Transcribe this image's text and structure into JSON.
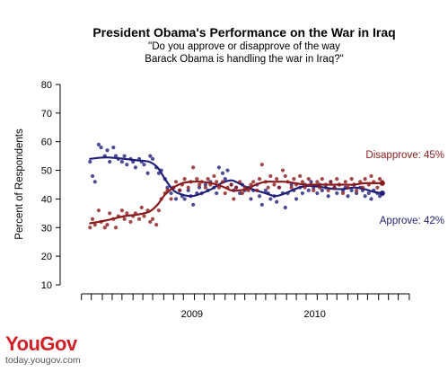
{
  "chart_data": {
    "type": "scatter",
    "title": "President Obama's Performance on the War in Iraq",
    "subtitle_lines": [
      "\"Do you approve or disapprove of the way",
      "Barack Obama is handling the war in Iraq?\""
    ],
    "ylabel": "Percent of Respondents",
    "ylim": [
      10,
      80
    ],
    "yticks": [
      10,
      20,
      30,
      40,
      50,
      60,
      70,
      80
    ],
    "xlim": [
      2008.58,
      2011.3
    ],
    "x_tick_labels": [
      {
        "label": "2009",
        "at": 2009.5
      },
      {
        "label": "2010",
        "at": 2010.5
      }
    ],
    "minor_x_ticks": [
      2008.6,
      2008.68,
      2008.77,
      2008.85,
      2008.93,
      2009.02,
      2009.1,
      2009.18,
      2009.27,
      2009.35,
      2009.43,
      2009.52,
      2009.6,
      2009.68,
      2009.77,
      2009.85,
      2009.93,
      2010.02,
      2010.1,
      2010.18,
      2010.27,
      2010.35,
      2010.43,
      2010.52,
      2010.6,
      2010.68,
      2010.77,
      2010.85,
      2010.93,
      2011.02,
      2011.1,
      2011.18,
      2011.27
    ],
    "series": [
      {
        "name": "Approve",
        "end_label": "Approve: 42%",
        "color": "#1f1f7a",
        "points": [
          [
            2008.67,
            53
          ],
          [
            2008.69,
            48
          ],
          [
            2008.71,
            46
          ],
          [
            2008.74,
            59
          ],
          [
            2008.76,
            58
          ],
          [
            2008.79,
            55
          ],
          [
            2008.81,
            57
          ],
          [
            2008.83,
            53
          ],
          [
            2008.86,
            58
          ],
          [
            2008.88,
            55
          ],
          [
            2008.9,
            54
          ],
          [
            2008.93,
            53
          ],
          [
            2008.95,
            55
          ],
          [
            2008.97,
            52
          ],
          [
            2009.0,
            54
          ],
          [
            2009.02,
            53
          ],
          [
            2009.04,
            51
          ],
          [
            2009.07,
            54
          ],
          [
            2009.09,
            53
          ],
          [
            2009.11,
            52
          ],
          [
            2009.14,
            49
          ],
          [
            2009.16,
            55
          ],
          [
            2009.18,
            54
          ],
          [
            2009.21,
            51
          ],
          [
            2009.23,
            49
          ],
          [
            2009.25,
            50
          ],
          [
            2009.28,
            47
          ],
          [
            2009.3,
            44
          ],
          [
            2009.33,
            42
          ],
          [
            2009.35,
            44
          ],
          [
            2009.37,
            40
          ],
          [
            2009.4,
            43
          ],
          [
            2009.42,
            41
          ],
          [
            2009.44,
            40
          ],
          [
            2009.47,
            43
          ],
          [
            2009.49,
            41
          ],
          [
            2009.51,
            38
          ],
          [
            2009.54,
            42
          ],
          [
            2009.56,
            44
          ],
          [
            2009.58,
            42
          ],
          [
            2009.61,
            45
          ],
          [
            2009.63,
            43
          ],
          [
            2009.65,
            46
          ],
          [
            2009.68,
            44
          ],
          [
            2009.7,
            42
          ],
          [
            2009.72,
            51
          ],
          [
            2009.75,
            49
          ],
          [
            2009.77,
            47
          ],
          [
            2009.79,
            50
          ],
          [
            2009.82,
            45
          ],
          [
            2009.84,
            43
          ],
          [
            2009.86,
            44
          ],
          [
            2009.89,
            42
          ],
          [
            2009.91,
            45
          ],
          [
            2009.93,
            43
          ],
          [
            2009.96,
            44
          ],
          [
            2009.98,
            40
          ],
          [
            2010.0,
            43
          ],
          [
            2010.03,
            45
          ],
          [
            2010.05,
            41
          ],
          [
            2010.07,
            38
          ],
          [
            2010.1,
            43
          ],
          [
            2010.12,
            42
          ],
          [
            2010.14,
            40
          ],
          [
            2010.17,
            41
          ],
          [
            2010.19,
            39
          ],
          [
            2010.21,
            44
          ],
          [
            2010.24,
            42
          ],
          [
            2010.26,
            37
          ],
          [
            2010.28,
            42
          ],
          [
            2010.31,
            45
          ],
          [
            2010.33,
            43
          ],
          [
            2010.35,
            40
          ],
          [
            2010.38,
            44
          ],
          [
            2010.4,
            42
          ],
          [
            2010.42,
            45
          ],
          [
            2010.45,
            43
          ],
          [
            2010.47,
            46
          ],
          [
            2010.49,
            44
          ],
          [
            2010.52,
            42
          ],
          [
            2010.54,
            45
          ],
          [
            2010.56,
            43
          ],
          [
            2010.59,
            44
          ],
          [
            2010.61,
            41
          ],
          [
            2010.63,
            46
          ],
          [
            2010.66,
            44
          ],
          [
            2010.68,
            42
          ],
          [
            2010.7,
            45
          ],
          [
            2010.73,
            43
          ],
          [
            2010.75,
            44
          ],
          [
            2010.77,
            41
          ],
          [
            2010.8,
            43
          ],
          [
            2010.82,
            45
          ],
          [
            2010.84,
            42
          ],
          [
            2010.87,
            44
          ],
          [
            2010.89,
            43
          ],
          [
            2010.91,
            41
          ],
          [
            2010.94,
            42
          ],
          [
            2010.96,
            40
          ],
          [
            2010.98,
            43
          ],
          [
            2011.01,
            42
          ],
          [
            2011.03,
            41
          ],
          [
            2011.05,
            42
          ]
        ],
        "trend": [
          [
            2008.67,
            54
          ],
          [
            2008.8,
            54.5
          ],
          [
            2008.95,
            54
          ],
          [
            2009.05,
            53.5
          ],
          [
            2009.15,
            53
          ],
          [
            2009.22,
            51
          ],
          [
            2009.28,
            47
          ],
          [
            2009.35,
            43
          ],
          [
            2009.42,
            41.5
          ],
          [
            2009.5,
            41
          ],
          [
            2009.58,
            42
          ],
          [
            2009.66,
            43.5
          ],
          [
            2009.74,
            45.5
          ],
          [
            2009.82,
            46.5
          ],
          [
            2009.88,
            45.5
          ],
          [
            2009.95,
            44
          ],
          [
            2010.02,
            43
          ],
          [
            2010.1,
            42
          ],
          [
            2010.18,
            41
          ],
          [
            2010.26,
            42
          ],
          [
            2010.34,
            43.5
          ],
          [
            2010.42,
            44.5
          ],
          [
            2010.5,
            44.5
          ],
          [
            2010.58,
            44
          ],
          [
            2010.66,
            43.5
          ],
          [
            2010.74,
            43.5
          ],
          [
            2010.82,
            44
          ],
          [
            2010.9,
            43.5
          ],
          [
            2010.98,
            42.5
          ],
          [
            2011.05,
            42
          ]
        ]
      },
      {
        "name": "Disapprove",
        "end_label": "Disapprove: 45%",
        "color": "#8b1a1a",
        "points": [
          [
            2008.67,
            30
          ],
          [
            2008.69,
            33
          ],
          [
            2008.71,
            31
          ],
          [
            2008.74,
            36
          ],
          [
            2008.76,
            32
          ],
          [
            2008.79,
            30
          ],
          [
            2008.81,
            31
          ],
          [
            2008.83,
            35
          ],
          [
            2008.86,
            33
          ],
          [
            2008.88,
            30
          ],
          [
            2008.9,
            34
          ],
          [
            2008.93,
            36
          ],
          [
            2008.95,
            33
          ],
          [
            2008.97,
            35
          ],
          [
            2009.0,
            32
          ],
          [
            2009.02,
            34
          ],
          [
            2009.04,
            35
          ],
          [
            2009.07,
            33
          ],
          [
            2009.09,
            37
          ],
          [
            2009.11,
            34
          ],
          [
            2009.14,
            36
          ],
          [
            2009.16,
            32
          ],
          [
            2009.18,
            33
          ],
          [
            2009.21,
            31
          ],
          [
            2009.23,
            36
          ],
          [
            2009.25,
            40
          ],
          [
            2009.28,
            42
          ],
          [
            2009.3,
            43
          ],
          [
            2009.33,
            40
          ],
          [
            2009.35,
            44
          ],
          [
            2009.37,
            46
          ],
          [
            2009.4,
            43
          ],
          [
            2009.42,
            45
          ],
          [
            2009.44,
            47
          ],
          [
            2009.47,
            44
          ],
          [
            2009.49,
            46
          ],
          [
            2009.51,
            51
          ],
          [
            2009.54,
            47
          ],
          [
            2009.56,
            45
          ],
          [
            2009.58,
            46
          ],
          [
            2009.61,
            44
          ],
          [
            2009.63,
            47
          ],
          [
            2009.65,
            45
          ],
          [
            2009.68,
            48
          ],
          [
            2009.7,
            46
          ],
          [
            2009.72,
            44
          ],
          [
            2009.75,
            46
          ],
          [
            2009.77,
            42
          ],
          [
            2009.79,
            44
          ],
          [
            2009.82,
            45
          ],
          [
            2009.84,
            40
          ],
          [
            2009.86,
            44
          ],
          [
            2009.89,
            46
          ],
          [
            2009.91,
            42
          ],
          [
            2009.93,
            44
          ],
          [
            2009.96,
            43
          ],
          [
            2009.98,
            45
          ],
          [
            2010.0,
            46
          ],
          [
            2010.03,
            43
          ],
          [
            2010.05,
            47
          ],
          [
            2010.07,
            52
          ],
          [
            2010.1,
            46
          ],
          [
            2010.12,
            44
          ],
          [
            2010.14,
            48
          ],
          [
            2010.17,
            45
          ],
          [
            2010.19,
            47
          ],
          [
            2010.21,
            44
          ],
          [
            2010.24,
            50
          ],
          [
            2010.26,
            48
          ],
          [
            2010.28,
            46
          ],
          [
            2010.31,
            44
          ],
          [
            2010.33,
            47
          ],
          [
            2010.35,
            45
          ],
          [
            2010.38,
            48
          ],
          [
            2010.4,
            46
          ],
          [
            2010.42,
            44
          ],
          [
            2010.45,
            47
          ],
          [
            2010.47,
            45
          ],
          [
            2010.49,
            43
          ],
          [
            2010.52,
            46
          ],
          [
            2010.54,
            44
          ],
          [
            2010.56,
            47
          ],
          [
            2010.59,
            45
          ],
          [
            2010.61,
            43
          ],
          [
            2010.63,
            46
          ],
          [
            2010.66,
            44
          ],
          [
            2010.68,
            47
          ],
          [
            2010.7,
            45
          ],
          [
            2010.73,
            42
          ],
          [
            2010.75,
            46
          ],
          [
            2010.77,
            44
          ],
          [
            2010.8,
            47
          ],
          [
            2010.82,
            45
          ],
          [
            2010.84,
            43
          ],
          [
            2010.87,
            46
          ],
          [
            2010.89,
            44
          ],
          [
            2010.91,
            47
          ],
          [
            2010.94,
            45
          ],
          [
            2010.96,
            48
          ],
          [
            2010.98,
            46
          ],
          [
            2011.01,
            44
          ],
          [
            2011.03,
            47
          ],
          [
            2011.05,
            46
          ]
        ],
        "trend": [
          [
            2008.67,
            31.5
          ],
          [
            2008.8,
            32.5
          ],
          [
            2008.95,
            34
          ],
          [
            2009.05,
            34.5
          ],
          [
            2009.15,
            35.5
          ],
          [
            2009.22,
            38
          ],
          [
            2009.28,
            41.5
          ],
          [
            2009.35,
            44
          ],
          [
            2009.42,
            45.5
          ],
          [
            2009.5,
            46
          ],
          [
            2009.58,
            46
          ],
          [
            2009.66,
            45.5
          ],
          [
            2009.74,
            44.5
          ],
          [
            2009.82,
            43
          ],
          [
            2009.88,
            43
          ],
          [
            2009.95,
            43.5
          ],
          [
            2010.02,
            45
          ],
          [
            2010.1,
            46
          ],
          [
            2010.18,
            46
          ],
          [
            2010.26,
            46
          ],
          [
            2010.34,
            45.5
          ],
          [
            2010.42,
            45
          ],
          [
            2010.5,
            45
          ],
          [
            2010.58,
            45
          ],
          [
            2010.66,
            45
          ],
          [
            2010.74,
            45
          ],
          [
            2010.82,
            45
          ],
          [
            2010.9,
            45.5
          ],
          [
            2010.98,
            45.5
          ],
          [
            2011.05,
            45.5
          ]
        ]
      }
    ]
  },
  "branding": {
    "logo_text": "YouGov",
    "url": "today.yougov.com"
  }
}
